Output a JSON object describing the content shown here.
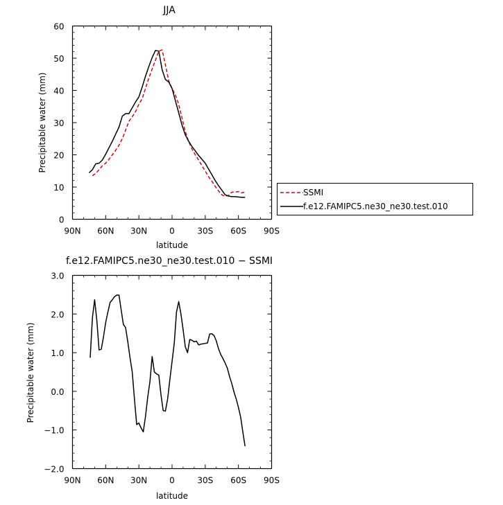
{
  "chart_data": [
    {
      "type": "line",
      "title": "JJA",
      "xlabel": "latitude",
      "ylabel": "Precipitable water (mm)",
      "xlim": [
        90,
        -90
      ],
      "ylim": [
        0,
        60
      ],
      "x_ticks": [
        90,
        60,
        30,
        0,
        -30,
        -60,
        -90
      ],
      "x_tick_labels": [
        "90N",
        "60N",
        "30N",
        "0",
        "30S",
        "60S",
        "90S"
      ],
      "y_ticks": [
        0,
        10,
        20,
        30,
        40,
        50,
        60
      ],
      "y_tick_labels": [
        "0",
        "10",
        "20",
        "30",
        "40",
        "50",
        "60"
      ],
      "legend_position": "outside-right",
      "series": [
        {
          "name": "SSMI",
          "color": "#e00000",
          "dash": "dashed",
          "x": [
            72,
            69,
            66,
            63,
            60,
            57,
            54,
            51,
            48,
            45,
            42,
            39,
            36,
            33,
            30,
            27,
            24,
            21,
            18,
            15,
            12,
            9,
            6,
            3,
            0,
            -3,
            -6,
            -9,
            -12,
            -15,
            -18,
            -21,
            -24,
            -27,
            -30,
            -33,
            -36,
            -39,
            -42,
            -45,
            -48,
            -51,
            -54,
            -57,
            -60,
            -63,
            -66
          ],
          "y": [
            13.5,
            14.2,
            15.4,
            16.6,
            17.4,
            18.6,
            20.0,
            21.4,
            23.0,
            25.0,
            27.6,
            30.4,
            31.8,
            33.4,
            35.7,
            37.4,
            40.6,
            43.8,
            46.6,
            49.4,
            52.2,
            52.6,
            48.0,
            43.0,
            40.6,
            38.6,
            35.6,
            31.4,
            27.2,
            24.2,
            21.8,
            20.0,
            18.4,
            16.6,
            15.0,
            13.2,
            11.8,
            10.2,
            8.8,
            7.6,
            7.1,
            7.4,
            8.4,
            8.4,
            8.6,
            8.2,
            8.4
          ]
        },
        {
          "name": "f.e12.FAMIPC5.ne30_ne30.test.010",
          "color": "#000000",
          "dash": "solid",
          "x": [
            75,
            72,
            69,
            66,
            63,
            60,
            57,
            54,
            51,
            48,
            45,
            42,
            39,
            36,
            33,
            30,
            27,
            24,
            21,
            18,
            15,
            12,
            9,
            6,
            3,
            0,
            -3,
            -6,
            -9,
            -12,
            -15,
            -18,
            -21,
            -24,
            -27,
            -30,
            -33,
            -36,
            -39,
            -42,
            -45,
            -48,
            -51,
            -54,
            -57,
            -60,
            -63,
            -66
          ],
          "y": [
            14.4,
            15.4,
            17.2,
            17.4,
            18.4,
            20.2,
            22.2,
            24.2,
            26.4,
            28.6,
            32.0,
            32.8,
            32.8,
            34.6,
            36.4,
            38.0,
            41.0,
            44.4,
            47.4,
            50.2,
            52.4,
            52.2,
            46.4,
            43.4,
            42.6,
            40.6,
            36.8,
            33.0,
            29.2,
            26.2,
            24.2,
            22.6,
            21.2,
            19.8,
            18.6,
            17.4,
            15.6,
            13.8,
            12.0,
            10.4,
            9.0,
            7.6,
            7.2,
            7.0,
            7.0,
            6.9,
            6.8,
            6.8
          ]
        }
      ]
    },
    {
      "type": "line",
      "title": "f.e12.FAMIPC5.ne30_ne30.test.010 − SSMI",
      "xlabel": "latitude",
      "ylabel": "Precipitable water (mm)",
      "xlim": [
        90,
        -90
      ],
      "ylim": [
        -2.0,
        3.0
      ],
      "x_ticks": [
        90,
        60,
        30,
        0,
        -30,
        -60,
        -90
      ],
      "x_tick_labels": [
        "90N",
        "60N",
        "30N",
        "0",
        "30S",
        "60S",
        "90S"
      ],
      "y_ticks": [
        -2.0,
        -1.0,
        0.0,
        1.0,
        2.0,
        3.0
      ],
      "y_tick_labels": [
        "−2.0",
        "−1.0",
        "0.0",
        "1.0",
        "2.0",
        "3.0"
      ],
      "series": [
        {
          "color": "#000000",
          "dash": "solid",
          "x": [
            74,
            72,
            70,
            68,
            66,
            64,
            62,
            60,
            58,
            56,
            54,
            52,
            50,
            48,
            46,
            44,
            42,
            40,
            38,
            36,
            34,
            32,
            30,
            28,
            26,
            24,
            22,
            20,
            18,
            16,
            14,
            12,
            10,
            8,
            6,
            4,
            2,
            0,
            -2,
            -4,
            -6,
            -8,
            -10,
            -12,
            -14,
            -16,
            -18,
            -20,
            -22,
            -24,
            -26,
            -28,
            -30,
            -32,
            -34,
            -36,
            -38,
            -40,
            -42,
            -44,
            -46,
            -48,
            -50,
            -52,
            -54,
            -56,
            -58,
            -60,
            -62,
            -64,
            -66
          ],
          "y": [
            0.87,
            1.9,
            2.37,
            1.83,
            1.07,
            1.09,
            1.4,
            1.78,
            2.05,
            2.3,
            2.37,
            2.45,
            2.49,
            2.49,
            2.1,
            1.73,
            1.65,
            1.28,
            0.87,
            0.5,
            -0.2,
            -0.86,
            -0.82,
            -0.95,
            -1.05,
            -0.65,
            -0.15,
            0.25,
            0.9,
            0.5,
            0.45,
            0.42,
            -0.1,
            -0.5,
            -0.51,
            -0.2,
            0.3,
            0.77,
            1.25,
            2.05,
            2.32,
            2.0,
            1.6,
            1.15,
            1.0,
            1.34,
            1.32,
            1.28,
            1.3,
            1.2,
            1.22,
            1.23,
            1.24,
            1.25,
            1.48,
            1.49,
            1.44,
            1.3,
            1.1,
            0.95,
            0.85,
            0.73,
            0.6,
            0.38,
            0.2,
            -0.02,
            -0.2,
            -0.42,
            -0.67,
            -1.05,
            -1.42
          ]
        }
      ]
    }
  ]
}
